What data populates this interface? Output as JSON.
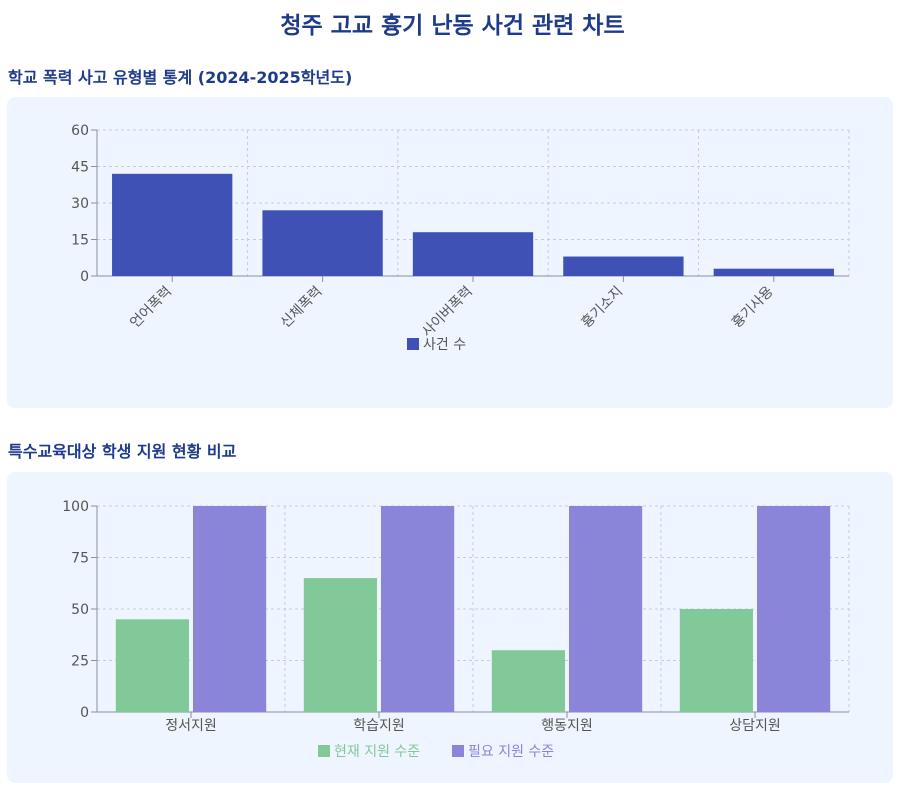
{
  "page": {
    "title": "청주 고교 흉기 난동 사건 관련 차트"
  },
  "colors": {
    "title": "#1e3a8a",
    "panel_bg": "#eff5ff",
    "bar_primary": "#3f51b5",
    "current_support": "#82c99a",
    "required_support": "#8a85d9",
    "grid": "#c7cbe0",
    "axis": "#8a8fa6",
    "tick_text": "#555555"
  },
  "chart1": {
    "section_title": "학교 폭력 사고 유형별 통계 (2024-2025학년도)"
  },
  "chart2": {
    "section_title": "특수교육대상 학생 지원 현황 비교"
  },
  "chart_data": [
    {
      "type": "bar",
      "title": "학교 폭력 사고 유형별 통계 (2024-2025학년도)",
      "categories": [
        "언어폭력",
        "신체폭력",
        "사이버폭력",
        "흉기소지",
        "흉기사용"
      ],
      "series": [
        {
          "name": "사건 수",
          "values": [
            42,
            27,
            18,
            8,
            3
          ]
        }
      ],
      "ylim": [
        0,
        60
      ],
      "yticks": [
        0,
        15,
        30,
        45,
        60
      ],
      "grid": true,
      "legend": "bottom",
      "xlabel": "",
      "ylabel": ""
    },
    {
      "type": "bar",
      "title": "특수교육대상 학생 지원 현황 비교",
      "categories": [
        "정서지원",
        "학습지원",
        "행동지원",
        "상담지원"
      ],
      "series": [
        {
          "name": "현재 지원 수준",
          "values": [
            45,
            65,
            30,
            50
          ]
        },
        {
          "name": "필요 지원 수준",
          "values": [
            100,
            100,
            100,
            100
          ]
        }
      ],
      "ylim": [
        0,
        100
      ],
      "yticks": [
        0,
        25,
        50,
        75,
        100
      ],
      "grid": true,
      "legend": "bottom",
      "xlabel": "",
      "ylabel": ""
    }
  ]
}
